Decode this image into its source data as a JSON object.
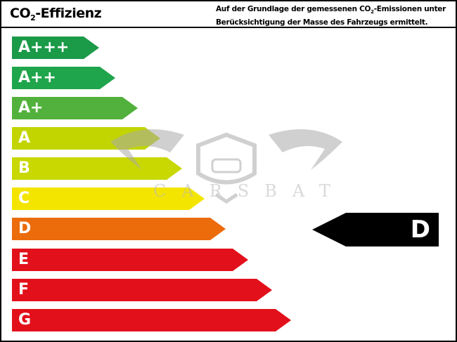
{
  "header": {
    "title_prefix": "CO",
    "title_sub": "2",
    "title_suffix": "-Effizienz",
    "note_line1_prefix": "Auf der Grundlage der gemessenen CO",
    "note_line1_sub": "2",
    "note_line1_suffix": "-Emissionen unter",
    "note_line2": "Berücksichtigung der Masse des Fahrzeugs ermittelt."
  },
  "classes": [
    {
      "label": "A+++",
      "color": "#1b9a48"
    },
    {
      "label": "A++",
      "color": "#1fa54b"
    },
    {
      "label": "A+",
      "color": "#52b13c"
    },
    {
      "label": "A",
      "color": "#c2d500"
    },
    {
      "label": "B",
      "color": "#c8d800"
    },
    {
      "label": "C",
      "color": "#f4e500"
    },
    {
      "label": "D",
      "color": "#ec6b0b"
    },
    {
      "label": "E",
      "color": "#e2101b"
    },
    {
      "label": "F",
      "color": "#e2101b"
    },
    {
      "label": "G",
      "color": "#e2101b"
    }
  ],
  "rating": {
    "label": "D",
    "color": "#000000"
  },
  "watermark": {
    "text": "CARSBAT"
  }
}
